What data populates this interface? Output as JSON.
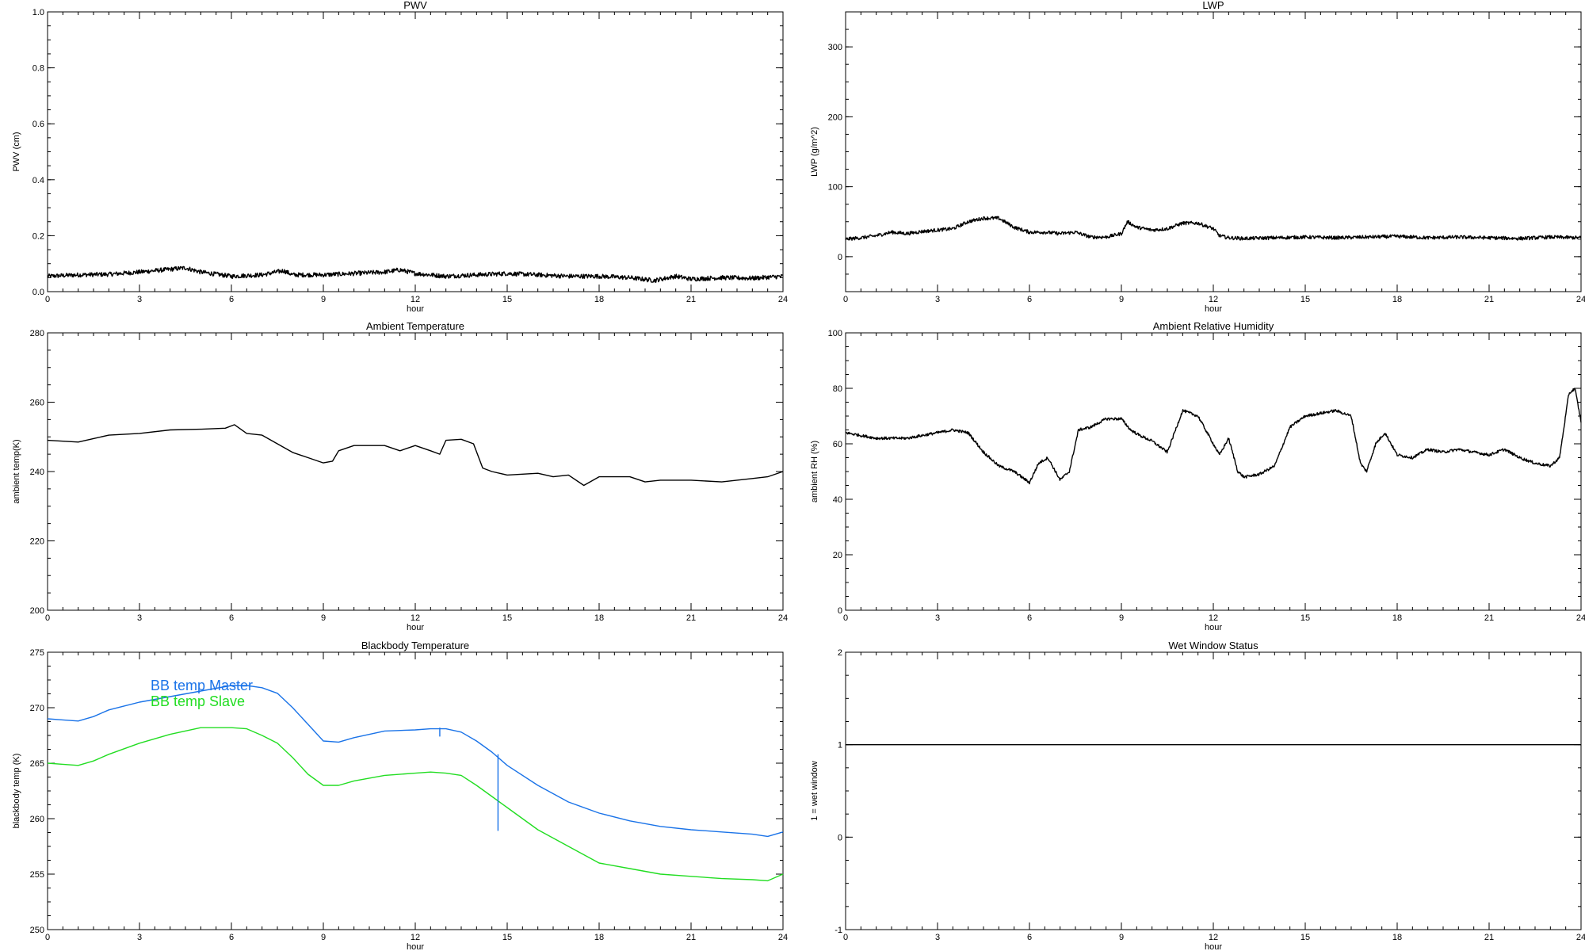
{
  "chart_data": [
    {
      "type": "line",
      "title": "PWV",
      "xlabel": "hour",
      "ylabel": "PWV (cm)",
      "xlim": [
        0,
        24
      ],
      "ylim": [
        0,
        1.0
      ],
      "x_ticks": [
        "0",
        "3",
        "6",
        "9",
        "12",
        "15",
        "18",
        "21",
        "24"
      ],
      "y_ticks": [
        "0.0",
        "0.2",
        "0.4",
        "0.6",
        "0.8",
        "1.0"
      ],
      "series": [
        {
          "color": "#000000",
          "noise": 0.008,
          "x": [
            0,
            1,
            2,
            3,
            4,
            4.5,
            5,
            6,
            7,
            7.7,
            8,
            9,
            10,
            11,
            11.5,
            12,
            13,
            14,
            15,
            16,
            17,
            18,
            19,
            19.8,
            20.5,
            21,
            22,
            23,
            24
          ],
          "y": [
            0.055,
            0.06,
            0.062,
            0.07,
            0.08,
            0.085,
            0.07,
            0.055,
            0.06,
            0.075,
            0.06,
            0.06,
            0.065,
            0.07,
            0.078,
            0.065,
            0.055,
            0.06,
            0.065,
            0.06,
            0.055,
            0.055,
            0.05,
            0.04,
            0.055,
            0.045,
            0.05,
            0.048,
            0.055
          ]
        }
      ]
    },
    {
      "type": "line",
      "title": "LWP",
      "xlabel": "hour",
      "ylabel": "LWP (g/m^2)",
      "xlim": [
        0,
        24
      ],
      "ylim": [
        -50,
        350
      ],
      "x_ticks": [
        "0",
        "3",
        "6",
        "9",
        "12",
        "15",
        "18",
        "21",
        "24"
      ],
      "y_ticks": [
        "0",
        "100",
        "200",
        "300"
      ],
      "series": [
        {
          "color": "#000000",
          "noise": 2.5,
          "x": [
            0,
            0.5,
            1,
            1.5,
            2,
            2.5,
            3,
            3.5,
            4,
            4.5,
            5,
            5.5,
            6,
            6.5,
            7,
            7.5,
            8,
            8.5,
            9,
            9.2,
            9.5,
            10,
            10.5,
            11,
            11.5,
            12,
            12.2,
            12.5,
            13,
            14,
            15,
            16,
            17,
            18,
            19,
            20,
            21,
            22,
            23,
            24
          ],
          "y": [
            25,
            27,
            30,
            35,
            33,
            36,
            38,
            40,
            50,
            55,
            55,
            42,
            35,
            35,
            33,
            35,
            28,
            28,
            33,
            50,
            42,
            38,
            40,
            48,
            48,
            40,
            30,
            27,
            26,
            27,
            28,
            27,
            28,
            29,
            27,
            28,
            27,
            26,
            28,
            27
          ]
        }
      ]
    },
    {
      "type": "line",
      "title": "Ambient Temperature",
      "xlabel": "hour",
      "ylabel": "ambient temp(K)",
      "xlim": [
        0,
        24
      ],
      "ylim": [
        200,
        280
      ],
      "x_ticks": [
        "0",
        "3",
        "6",
        "9",
        "12",
        "15",
        "18",
        "21",
        "24"
      ],
      "y_ticks": [
        "200",
        "220",
        "240",
        "260",
        "280"
      ],
      "series": [
        {
          "color": "#000000",
          "noise": 0,
          "x": [
            0,
            1,
            1.5,
            2,
            3,
            4,
            5,
            5.8,
            6.1,
            6.5,
            7,
            7.5,
            8,
            8.5,
            9,
            9.3,
            9.5,
            10,
            11,
            11.5,
            12,
            12.5,
            12.8,
            13,
            13.5,
            13.9,
            14.2,
            14.5,
            15,
            16,
            16.5,
            17,
            17.5,
            18,
            19,
            19.5,
            20,
            21,
            22,
            23,
            23.5,
            24
          ],
          "y": [
            249,
            248.5,
            249.5,
            250.5,
            251,
            252,
            252.2,
            252.5,
            253.5,
            251,
            250.5,
            248,
            245.5,
            244,
            242.5,
            243,
            246,
            247.5,
            247.5,
            246,
            247.5,
            246,
            245,
            249,
            249.3,
            248,
            241,
            240,
            239,
            239.5,
            238.5,
            239,
            236,
            238.5,
            238.5,
            237,
            237.5,
            237.5,
            237,
            238,
            238.5,
            240
          ]
        }
      ]
    },
    {
      "type": "line",
      "title": "Ambient Relative Humidity",
      "xlabel": "hour",
      "ylabel": "ambient RH (%)",
      "xlim": [
        0,
        24
      ],
      "ylim": [
        0,
        100
      ],
      "x_ticks": [
        "0",
        "3",
        "6",
        "9",
        "12",
        "15",
        "18",
        "21",
        "24"
      ],
      "y_ticks": [
        "0",
        "20",
        "40",
        "60",
        "80",
        "100"
      ],
      "series": [
        {
          "color": "#000000",
          "noise": 0.5,
          "x": [
            0,
            0.5,
            1,
            1.5,
            2,
            2.5,
            3,
            3.5,
            4,
            4.5,
            5,
            5.5,
            6,
            6.3,
            6.6,
            7,
            7.3,
            7.6,
            8,
            8.5,
            9,
            9.3,
            9.6,
            10,
            10.5,
            11,
            11.5,
            12,
            12.2,
            12.5,
            12.8,
            13,
            13.5,
            14,
            14.5,
            15,
            15.5,
            16,
            16.5,
            16.8,
            17,
            17.3,
            17.6,
            18,
            18.5,
            19,
            19.5,
            20,
            20.5,
            21,
            21.5,
            22,
            22.5,
            23,
            23.3,
            23.6,
            23.8,
            24
          ],
          "y": [
            64,
            63,
            62,
            62,
            62,
            63,
            64,
            65,
            64,
            57,
            52,
            50,
            46,
            53,
            55,
            47,
            50,
            65,
            66,
            69,
            69,
            65,
            63,
            61,
            57,
            72,
            70,
            60,
            56,
            62,
            50,
            48,
            49,
            52,
            66,
            70,
            71,
            72,
            70,
            53,
            50,
            60,
            64,
            56,
            55,
            58,
            57,
            58,
            57,
            56,
            58,
            55,
            53,
            52,
            55,
            78,
            80,
            68
          ]
        }
      ]
    },
    {
      "type": "line",
      "title": "Blackbody Temperature",
      "xlabel": "hour",
      "ylabel": "blackbody temp (K)",
      "xlim": [
        0,
        24
      ],
      "ylim": [
        250,
        275
      ],
      "x_ticks": [
        "0",
        "3",
        "6",
        "9",
        "12",
        "15",
        "18",
        "21",
        "24"
      ],
      "y_ticks": [
        "250",
        "255",
        "260",
        "265",
        "270",
        "275"
      ],
      "legend": [
        "BB temp Master",
        "BB temp Slave"
      ],
      "series": [
        {
          "name": "BB temp Master",
          "color": "#1a73e8",
          "noise": 0,
          "x": [
            0,
            0.5,
            1,
            1.5,
            2,
            3,
            4,
            5,
            6,
            6.5,
            7,
            7.5,
            8,
            8.5,
            9,
            9.5,
            10,
            11,
            12,
            12.5,
            13,
            13.5,
            14,
            14.5,
            15,
            16,
            17,
            18,
            19,
            20,
            21,
            22,
            23,
            23.5,
            24
          ],
          "y": [
            269,
            268.9,
            268.8,
            269.2,
            269.8,
            270.5,
            271,
            271.5,
            272,
            272,
            271.8,
            271.3,
            270,
            268.5,
            267,
            266.9,
            267.3,
            267.9,
            268,
            268.1,
            268.1,
            267.8,
            267,
            266,
            264.8,
            263,
            261.5,
            260.5,
            259.8,
            259.3,
            259,
            258.8,
            258.6,
            258.4,
            258.8
          ]
        },
        {
          "name": "BB temp Slave",
          "color": "#22dd22",
          "noise": 0,
          "x": [
            0,
            0.5,
            1,
            1.5,
            2,
            3,
            4,
            5,
            6,
            6.5,
            7,
            7.5,
            8,
            8.5,
            9,
            9.5,
            10,
            11,
            12,
            12.5,
            13,
            13.5,
            14,
            14.5,
            15,
            16,
            17,
            18,
            19,
            20,
            21,
            22,
            23,
            23.5,
            24
          ],
          "y": [
            265,
            264.9,
            264.8,
            265.2,
            265.8,
            266.8,
            267.6,
            268.2,
            268.2,
            268.1,
            267.5,
            266.8,
            265.5,
            264,
            263,
            263,
            263.4,
            263.9,
            264.1,
            264.2,
            264.1,
            263.9,
            263,
            262,
            261,
            259,
            257.5,
            256,
            255.5,
            255,
            254.8,
            254.6,
            254.5,
            254.4,
            255
          ]
        }
      ],
      "spikes": [
        {
          "x": 12.8,
          "y_top": 268.2,
          "y_bottom": 267.4,
          "color": "#1a73e8"
        },
        {
          "x": 14.7,
          "y_top": 265.8,
          "y_bottom": 258.9,
          "color": "#1a73e8"
        }
      ]
    },
    {
      "type": "line",
      "title": "Wet Window Status",
      "xlabel": "hour",
      "ylabel": "1 = wet window",
      "xlim": [
        0,
        24
      ],
      "ylim": [
        -1,
        2
      ],
      "x_ticks": [
        "0",
        "3",
        "6",
        "9",
        "12",
        "15",
        "18",
        "21",
        "24"
      ],
      "y_ticks": [
        "-1",
        "0",
        "1",
        "2"
      ],
      "series": [
        {
          "color": "#000000",
          "noise": 0,
          "x": [
            0,
            24
          ],
          "y": [
            1,
            1
          ]
        }
      ]
    }
  ]
}
